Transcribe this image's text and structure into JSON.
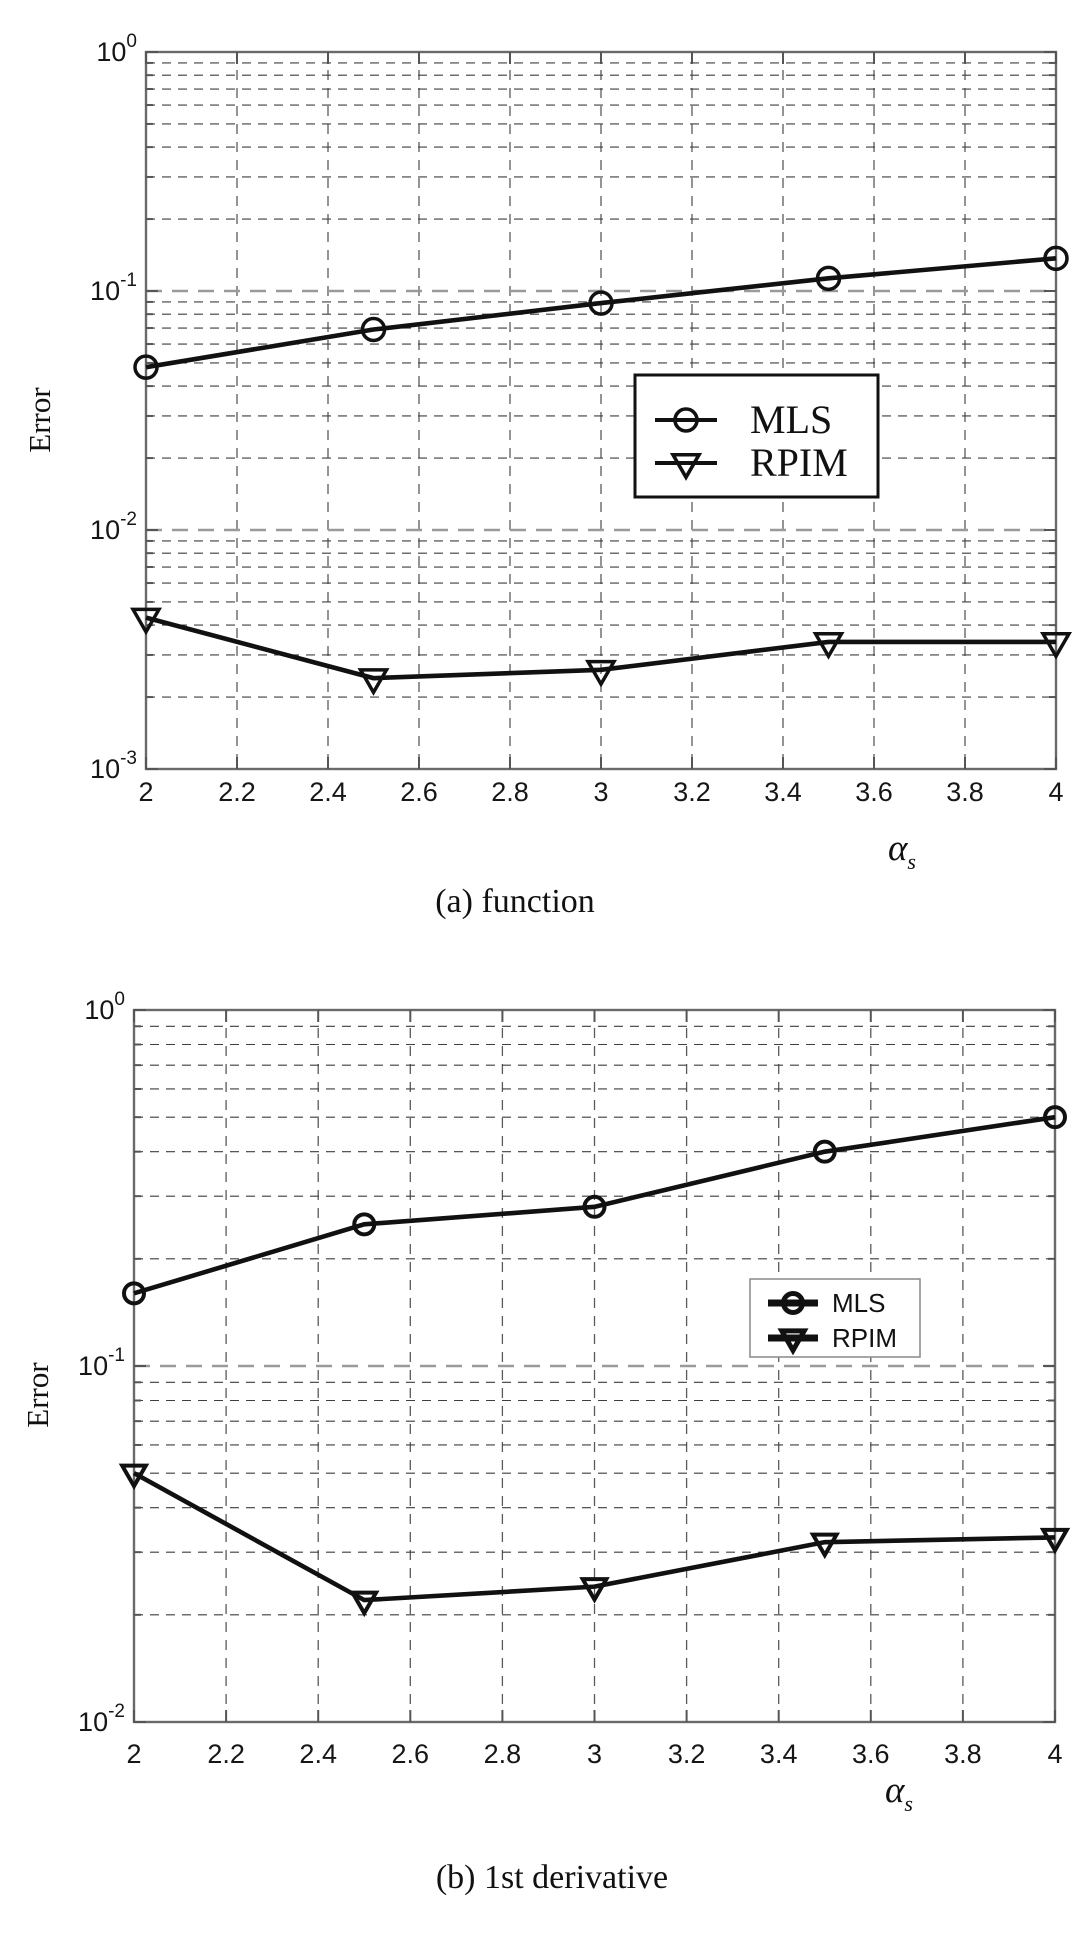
{
  "page": {
    "background": "#ffffff"
  },
  "colors": {
    "series_line": "#111111",
    "grid_minor": "#3f3f3f",
    "grid_major": "#9a9a9a",
    "axis_frame": "#6a6a6a",
    "text": "#111111"
  },
  "chart_data": [
    {
      "type": "line",
      "caption": "(a) function",
      "ylabel": "Error",
      "xlabel": "α",
      "xlabel_sub": "s",
      "x": [
        2,
        2.5,
        3,
        3.5,
        4
      ],
      "xlim": [
        2,
        4
      ],
      "xticks": [
        "2",
        "2.2",
        "2.4",
        "2.6",
        "2.8",
        "3",
        "3.2",
        "3.4",
        "3.6",
        "3.8",
        "4"
      ],
      "yscale": "log",
      "ylim": [
        0.001,
        1
      ],
      "y_decade_exponents": [
        0,
        -1,
        -2,
        -3
      ],
      "grid": "dashed major + minor log grid, vertical at every 0.2",
      "legend_position": "center-right-inside",
      "series": [
        {
          "name": "MLS",
          "marker": "circle",
          "values": [
            0.048,
            0.069,
            0.089,
            0.113,
            0.137
          ]
        },
        {
          "name": "RPIM",
          "marker": "triangle-down",
          "values": [
            0.0043,
            0.0024,
            0.0026,
            0.0034,
            0.0034
          ]
        }
      ]
    },
    {
      "type": "line",
      "caption": "(b) 1st derivative",
      "ylabel": "Error",
      "xlabel": "α",
      "xlabel_sub": "s",
      "x": [
        2,
        2.5,
        3,
        3.5,
        4
      ],
      "xlim": [
        2,
        4
      ],
      "xticks": [
        "2",
        "2.2",
        "2.4",
        "2.6",
        "2.8",
        "3",
        "3.2",
        "3.4",
        "3.6",
        "3.8",
        "4"
      ],
      "yscale": "log",
      "ylim": [
        0.01,
        1
      ],
      "y_decade_exponents": [
        0,
        -1,
        -2
      ],
      "grid": "dashed major + minor log grid, vertical at every 0.2",
      "legend_position": "lower-center-right-inside",
      "series": [
        {
          "name": "MLS",
          "marker": "circle",
          "values": [
            0.16,
            0.25,
            0.28,
            0.4,
            0.5
          ]
        },
        {
          "name": "RPIM",
          "marker": "triangle-down",
          "values": [
            0.05,
            0.022,
            0.024,
            0.032,
            0.033
          ]
        }
      ]
    }
  ]
}
